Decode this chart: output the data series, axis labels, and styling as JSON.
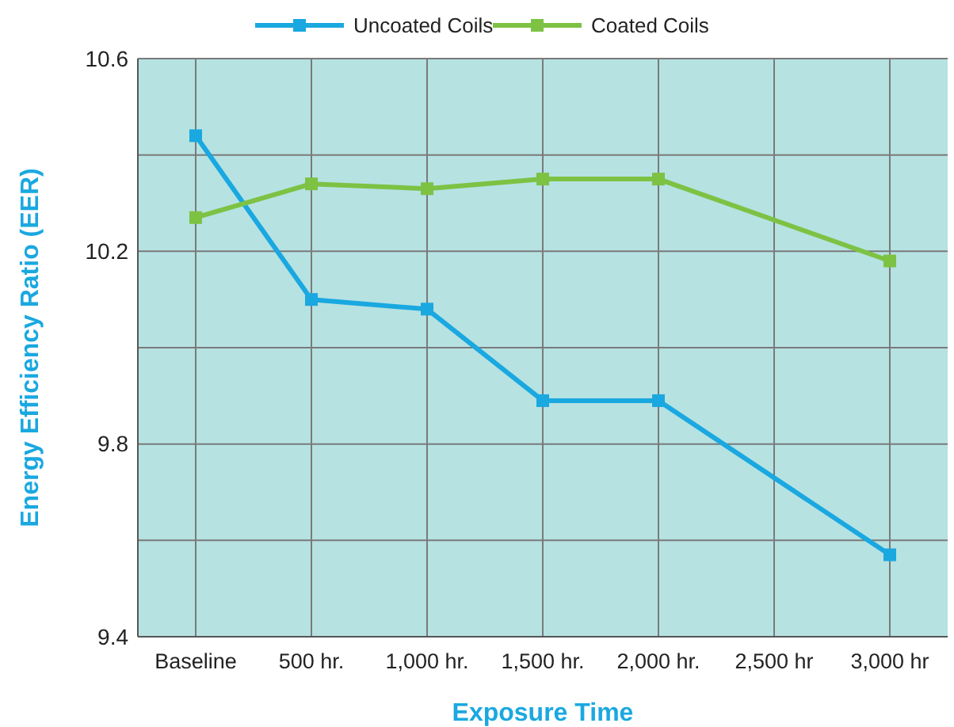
{
  "chart_data": {
    "type": "line",
    "xlabel": "Exposure Time",
    "ylabel": "Energy Efficiency Ratio (EER)",
    "categories": [
      "Baseline",
      "500 hr.",
      "1,000 hr.",
      "1,500 hr.",
      "2,000 hr.",
      "2,500 hr",
      "3,000 hr"
    ],
    "series": [
      {
        "name": "Uncoated Coils",
        "color": "#1aa8e0",
        "values": [
          10.44,
          10.1,
          10.08,
          9.89,
          9.89,
          null,
          9.57
        ]
      },
      {
        "name": "Coated Coils",
        "color": "#7dc243",
        "values": [
          10.27,
          10.34,
          10.33,
          10.35,
          10.35,
          null,
          10.18
        ]
      }
    ],
    "ylim": [
      9.4,
      10.6
    ],
    "yticks": [
      9.4,
      {
        "value": 9.6,
        "label": null
      },
      9.8,
      {
        "value": 10.0,
        "label": null
      },
      10.2,
      {
        "value": 10.4,
        "label": null
      },
      10.6
    ],
    "grid": true,
    "legend": "top",
    "marker": "square",
    "line_style": "solid"
  }
}
